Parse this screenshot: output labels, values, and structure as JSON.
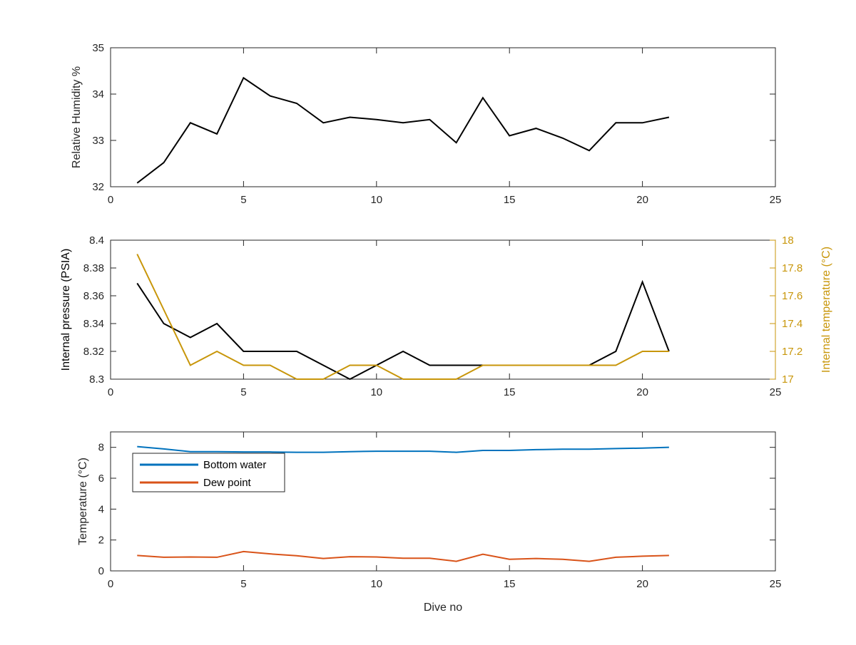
{
  "chart_data": [
    {
      "type": "line",
      "title": "",
      "xlabel": "",
      "ylabel": "Relative Humidity %",
      "xlim": [
        0,
        25
      ],
      "ylim": [
        32,
        35
      ],
      "xticks": [
        0,
        5,
        10,
        15,
        20,
        25
      ],
      "yticks": [
        32,
        33,
        34,
        35
      ],
      "x": [
        1,
        2,
        3,
        4,
        5,
        6,
        7,
        8,
        9,
        10,
        11,
        12,
        13,
        14,
        15,
        16,
        17,
        18,
        19,
        20,
        21
      ],
      "series": [
        {
          "name": "",
          "color": "#000000",
          "axis": "left",
          "values": [
            32.08,
            32.52,
            33.38,
            33.14,
            34.35,
            33.96,
            33.8,
            33.38,
            33.5,
            33.45,
            33.38,
            33.45,
            32.95,
            33.92,
            33.1,
            33.26,
            33.05,
            32.78,
            33.38,
            33.38,
            33.5
          ]
        }
      ]
    },
    {
      "type": "line",
      "title": "",
      "xlabel": "",
      "ylabel": "Internal pressure (PSIA)",
      "ylabel_right": "Internal temperature (°C)",
      "xlim": [
        0,
        25
      ],
      "ylim": [
        8.3,
        8.4
      ],
      "ylim_right": [
        17,
        18
      ],
      "xticks": [
        0,
        5,
        10,
        15,
        20,
        25
      ],
      "yticks": [
        8.3,
        8.32,
        8.34,
        8.36,
        8.38,
        8.4
      ],
      "yticks_right": [
        17,
        17.2,
        17.4,
        17.6,
        17.8,
        18
      ],
      "right_axis_color": "#C8960A",
      "x": [
        1,
        2,
        3,
        4,
        5,
        6,
        7,
        8,
        9,
        10,
        11,
        12,
        13,
        14,
        15,
        16,
        17,
        18,
        19,
        20,
        21
      ],
      "series": [
        {
          "name": "",
          "color": "#000000",
          "axis": "left",
          "values": [
            8.369,
            8.34,
            8.33,
            8.34,
            8.32,
            8.32,
            8.32,
            8.31,
            8.3,
            8.31,
            8.32,
            8.31,
            8.31,
            8.31,
            8.31,
            8.31,
            8.31,
            8.31,
            8.32,
            8.37,
            8.32
          ]
        },
        {
          "name": "",
          "color": "#C8960A",
          "axis": "right",
          "values": [
            17.9,
            17.5,
            17.1,
            17.2,
            17.1,
            17.1,
            17.0,
            17.0,
            17.1,
            17.1,
            17.0,
            17.0,
            17.0,
            17.1,
            17.1,
            17.1,
            17.1,
            17.1,
            17.1,
            17.2,
            17.2
          ]
        }
      ]
    },
    {
      "type": "line",
      "title": "",
      "xlabel": "Dive no",
      "ylabel": "Temperature (°C)",
      "xlim": [
        0,
        25
      ],
      "ylim": [
        0,
        9
      ],
      "xticks": [
        0,
        5,
        10,
        15,
        20,
        25
      ],
      "yticks": [
        0,
        2,
        4,
        6,
        8
      ],
      "legend": "top-left",
      "x": [
        1,
        2,
        3,
        4,
        5,
        6,
        7,
        8,
        9,
        10,
        11,
        12,
        13,
        14,
        15,
        16,
        17,
        18,
        19,
        20,
        21
      ],
      "series": [
        {
          "name": "Bottom water",
          "color": "#0072BD",
          "axis": "left",
          "values": [
            8.05,
            7.9,
            7.72,
            7.72,
            7.7,
            7.7,
            7.68,
            7.68,
            7.72,
            7.75,
            7.75,
            7.75,
            7.68,
            7.8,
            7.8,
            7.85,
            7.88,
            7.88,
            7.92,
            7.95,
            8.0
          ]
        },
        {
          "name": "Dew point",
          "color": "#D95319",
          "axis": "left",
          "values": [
            1.0,
            0.88,
            0.9,
            0.88,
            1.25,
            1.1,
            0.98,
            0.8,
            0.92,
            0.9,
            0.82,
            0.82,
            0.62,
            1.08,
            0.75,
            0.8,
            0.75,
            0.62,
            0.88,
            0.95,
            1.0
          ]
        }
      ]
    }
  ]
}
